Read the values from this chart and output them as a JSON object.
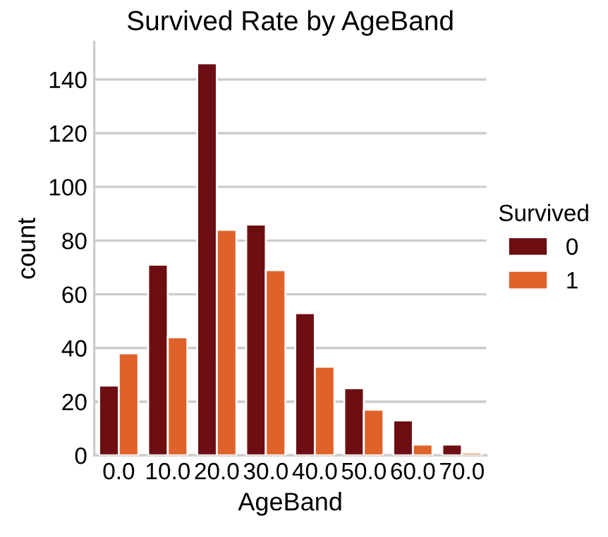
{
  "chart_data": {
    "type": "bar",
    "title": "Survived Rate by AgeBand",
    "xlabel": "AgeBand",
    "ylabel": "count",
    "legend_title": "Survived",
    "categories": [
      "0.0",
      "10.0",
      "20.0",
      "30.0",
      "40.0",
      "50.0",
      "60.0",
      "70.0"
    ],
    "series": [
      {
        "name": "0",
        "color": "#6d0e13",
        "values": [
          26,
          71,
          146,
          86,
          53,
          25,
          13,
          4
        ]
      },
      {
        "name": "1",
        "color": "#e0622b",
        "values": [
          38,
          44,
          84,
          69,
          33,
          17,
          4,
          1
        ]
      }
    ],
    "ylim": [
      0,
      154
    ],
    "yticks": [
      0,
      20,
      40,
      60,
      80,
      100,
      120,
      140
    ],
    "grid": "y",
    "legend": "right"
  }
}
